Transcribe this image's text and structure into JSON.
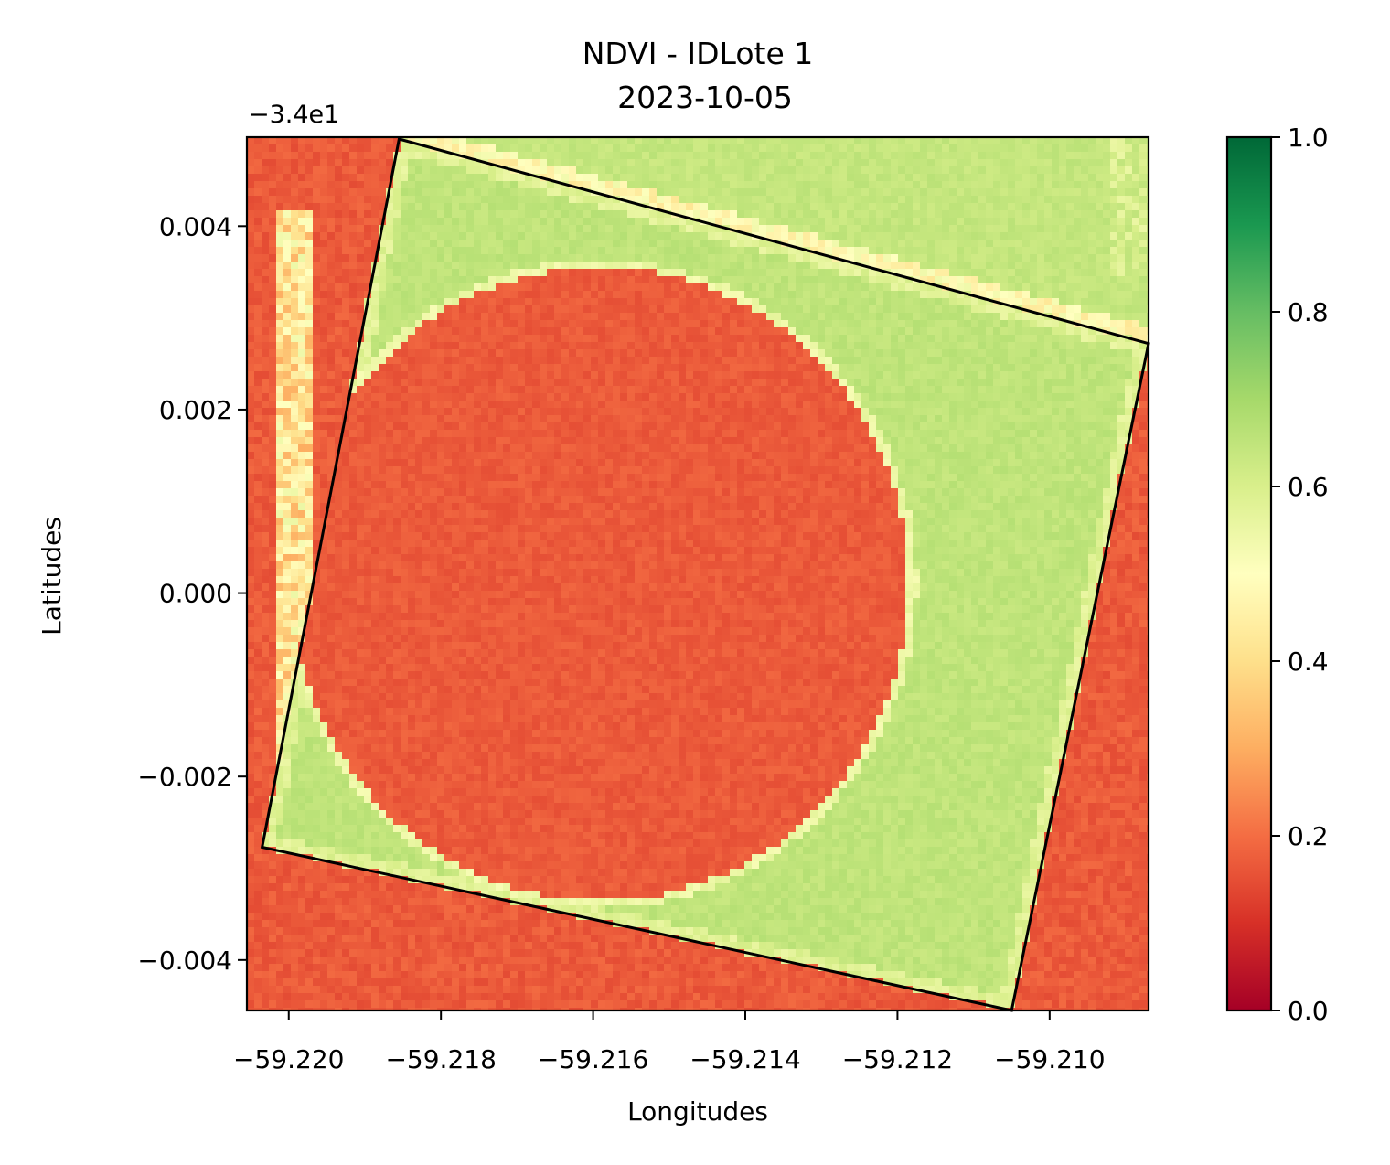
{
  "chart_data": {
    "type": "heatmap",
    "title": "NDVI - IDLote 1",
    "subtitle": "2023-10-05",
    "xlabel": "Longitudes",
    "ylabel": "Latitudes",
    "y_offset_label": "−3.4e1",
    "y_offset": -34,
    "xlim": [
      -59.22055,
      -59.2087
    ],
    "ylim": [
      -0.00455,
      0.00497
    ],
    "x_ticks": [
      -59.22,
      -59.218,
      -59.216,
      -59.214,
      -59.212,
      -59.21
    ],
    "x_tick_labels": [
      "−59.220",
      "−59.218",
      "−59.216",
      "−59.214",
      "−59.212",
      "−59.210"
    ],
    "y_ticks": [
      -0.004,
      -0.002,
      0.0,
      0.002,
      0.004
    ],
    "y_tick_labels": [
      "−0.004",
      "−0.002",
      "0.000",
      "0.002",
      "0.004"
    ],
    "colorbar": {
      "colormap": "RdYlGn",
      "range": [
        0.0,
        1.0
      ],
      "ticks": [
        0.0,
        0.2,
        0.4,
        0.6,
        0.8,
        1.0
      ],
      "tick_labels": [
        "0.0",
        "0.2",
        "0.4",
        "0.6",
        "0.8",
        "1.0"
      ],
      "stops": [
        "#a50026",
        "#d73027",
        "#f46d43",
        "#fdae61",
        "#fee08b",
        "#ffffbf",
        "#d9ef8b",
        "#a6d96a",
        "#66bd63",
        "#1a9850",
        "#006837"
      ]
    },
    "field_polygon": [
      {
        "lon": -59.21855,
        "lat": 0.00495
      },
      {
        "lon": -59.2087,
        "lat": 0.00272
      },
      {
        "lon": -59.2105,
        "lat": -0.00455
      },
      {
        "lon": -59.22035,
        "lat": -0.00277
      }
    ],
    "ndvi_regions": {
      "background_ndvi": 0.17,
      "field_ndvi": 0.65,
      "north_strip_ndvi": 0.64,
      "circle_center": {
        "lon": -59.2159,
        "lat": 0.0001
      },
      "circle_radius_lon": 0.00405,
      "circle_radius_lat": 0.00345,
      "circle_ndvi": 0.17
    }
  }
}
